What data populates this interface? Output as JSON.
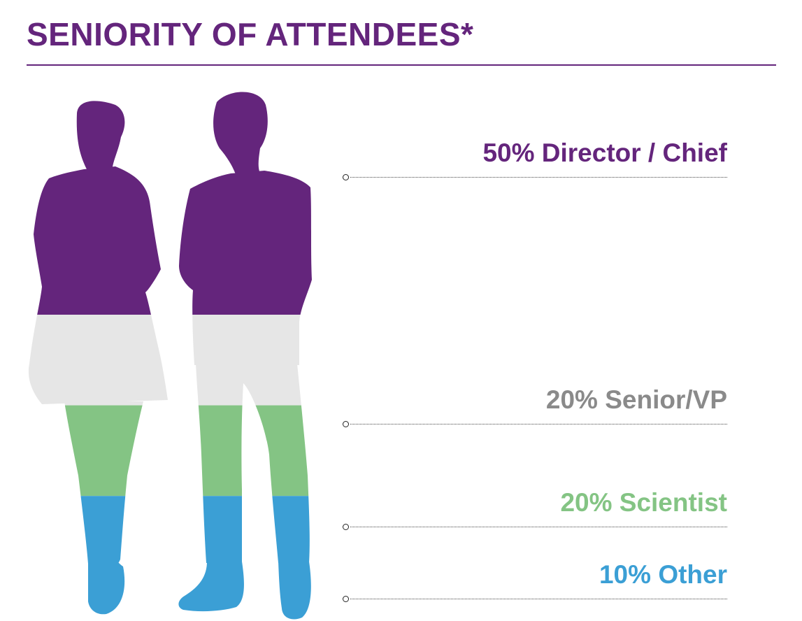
{
  "title": "SENIORITY OF ATTENDEES*",
  "colors": {
    "accent": "#64257c"
  },
  "chart_data": {
    "type": "bar",
    "orientation": "stacked-silhouette",
    "unit": "%",
    "categories": [
      "Director / Chief",
      "Senior/VP",
      "Scientist",
      "Other"
    ],
    "values": [
      50,
      20,
      20,
      10
    ],
    "labels": [
      "50% Director / Chief",
      "20% Senior/VP",
      "20% Scientist",
      "10% Other"
    ],
    "colors": [
      "#64257c",
      "#e6e6e6",
      "#84c484",
      "#3b9fd5"
    ]
  }
}
